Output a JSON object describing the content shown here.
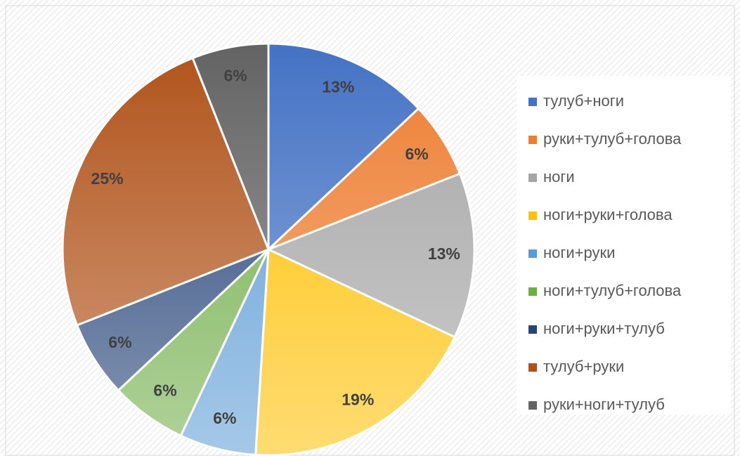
{
  "chart_data": {
    "type": "pie",
    "categories": [
      "тулуб+ноги",
      "руки+тулуб+голова",
      "ноги",
      "ноги+руки+голова",
      "ноги+руки",
      "ноги+тулуб+голова",
      "ноги+руки+тулуб",
      "тулуб+руки",
      "руки+ноги+тулуб"
    ],
    "values": [
      13,
      6,
      13,
      19,
      6,
      6,
      6,
      25,
      6
    ],
    "value_labels": [
      "13%",
      "6%",
      "13%",
      "19%",
      "6%",
      "6%",
      "6%",
      "25%",
      "6%"
    ],
    "colors": [
      "#4472c4",
      "#ed7d31",
      "#a5a5a5",
      "#ffc000",
      "#5b9bd5",
      "#70ad47",
      "#264478",
      "#b0531a",
      "#636363"
    ],
    "legend": "right"
  }
}
